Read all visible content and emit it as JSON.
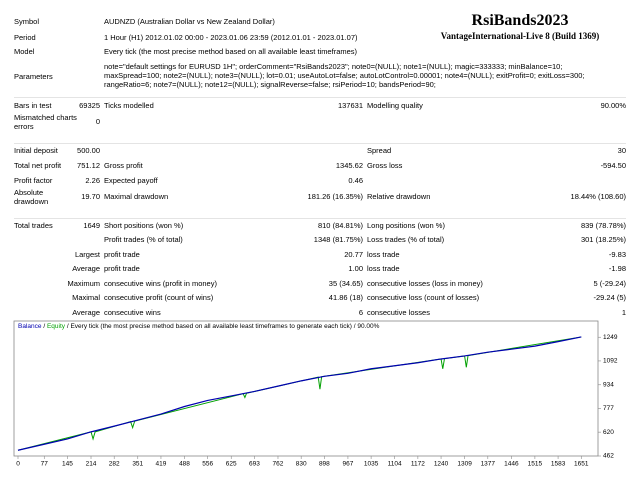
{
  "header": {
    "title": "RsiBands2023",
    "subtitle": "VantageInternational-Live 8 (Build 1369)"
  },
  "info": [
    [
      "Symbol",
      "AUDNZD (Australian Dollar vs New Zealand Dollar)"
    ],
    [
      "Period",
      "1 Hour (H1) 2012.01.02 00:00 - 2023.01.06 23:59 (2012.01.01 - 2023.01.07)"
    ],
    [
      "Model",
      "Every tick (the most precise method based on all available least timeframes)"
    ],
    [
      "Parameters",
      "note=\"default settings for EURUSD 1H\"; orderComment=\"RsiBands2023\"; note0=(NULL); note1=(NULL); magic=333333; minBalance=10; maxSpread=100; note2=(NULL); note3=(NULL); lot=0.01; useAutoLot=false; autoLotControl=0.00001; note4=(NULL); exitProfit=0; exitLoss=300; rangeRatio=6; note7=(NULL); note12=(NULL); signalReverse=false; rsiPeriod=10; bandsPeriod=90;"
    ]
  ],
  "stats": [
    [
      "Bars in test",
      "69325",
      "Ticks modelled",
      "137631",
      "Modelling quality",
      "90.00%"
    ],
    [
      "Mismatched charts errors",
      "0",
      null,
      null,
      null,
      null
    ],
    [
      "Initial deposit",
      "500.00",
      null,
      null,
      "Spread",
      "30"
    ],
    [
      "Total net profit",
      "751.12",
      "Gross profit",
      "1345.62",
      "Gross loss",
      "-594.50"
    ],
    [
      "Profit factor",
      "2.26",
      "Expected payoff",
      "0.46",
      null,
      null
    ],
    [
      "Absolute drawdown",
      "19.70",
      "Maximal drawdown",
      "181.26 (16.35%)",
      "Relative drawdown",
      "18.44% (108.60)"
    ],
    [
      "Total trades",
      "1649",
      "Short positions (won %)",
      "810 (84.81%)",
      "Long positions (won %)",
      "839 (78.78%)"
    ],
    [
      null,
      null,
      "Profit trades (% of total)",
      "1348 (81.75%)",
      "Loss trades (% of total)",
      "301 (18.25%)"
    ],
    [
      null,
      "Largest",
      "profit trade",
      "20.77",
      "loss trade",
      "-9.83"
    ],
    [
      null,
      "Average",
      "profit trade",
      "1.00",
      "loss trade",
      "-1.98"
    ],
    [
      null,
      "Maximum",
      "consecutive wins (profit in money)",
      "35 (34.65)",
      "consecutive losses (loss in money)",
      "5 (-29.24)"
    ],
    [
      null,
      "Maximal",
      "consecutive profit (count of wins)",
      "41.86 (18)",
      "consecutive loss (count of losses)",
      "-29.24 (5)"
    ],
    [
      null,
      "Average",
      "consecutive wins",
      "6",
      "consecutive losses",
      "1"
    ]
  ],
  "chart": {
    "type": "line",
    "legend_note": "Every tick (the most precise method based on all available least timeframes to generate each tick)",
    "quality": "90.00%",
    "separator": "/",
    "xlim": [
      0,
      1700
    ],
    "ylim": [
      462,
      1350
    ],
    "xticks": [
      0,
      77,
      145,
      214,
      282,
      351,
      419,
      488,
      556,
      625,
      693,
      762,
      830,
      898,
      967,
      1035,
      1104,
      1172,
      1240,
      1309,
      1377,
      1446,
      1515,
      1583,
      1651
    ],
    "yticks": [
      462,
      620,
      777,
      934,
      1092,
      1249
    ],
    "series": [
      {
        "name": "Balance",
        "color": "#0000b0",
        "x": [
          0,
          77,
          145,
          214,
          282,
          351,
          419,
          488,
          556,
          625,
          693,
          762,
          830,
          898,
          967,
          1035,
          1104,
          1172,
          1240,
          1309,
          1377,
          1446,
          1515,
          1583,
          1651
        ],
        "values": [
          500,
          540,
          575,
          622,
          660,
          700,
          740,
          790,
          830,
          860,
          890,
          925,
          960,
          990,
          1010,
          1040,
          1060,
          1080,
          1105,
          1125,
          1150,
          1170,
          1190,
          1220,
          1251
        ]
      },
      {
        "name": "Equity",
        "color": "#00a000",
        "x": [
          0,
          214,
          220,
          226,
          330,
          336,
          342,
          660,
          665,
          670,
          880,
          885,
          890,
          1240,
          1245,
          1250,
          1309,
          1314,
          1319,
          1651
        ],
        "values": [
          500,
          622,
          575,
          622,
          690,
          650,
          693,
          875,
          850,
          878,
          985,
          905,
          988,
          1105,
          1040,
          1107,
          1125,
          1050,
          1127,
          1251
        ]
      }
    ]
  }
}
